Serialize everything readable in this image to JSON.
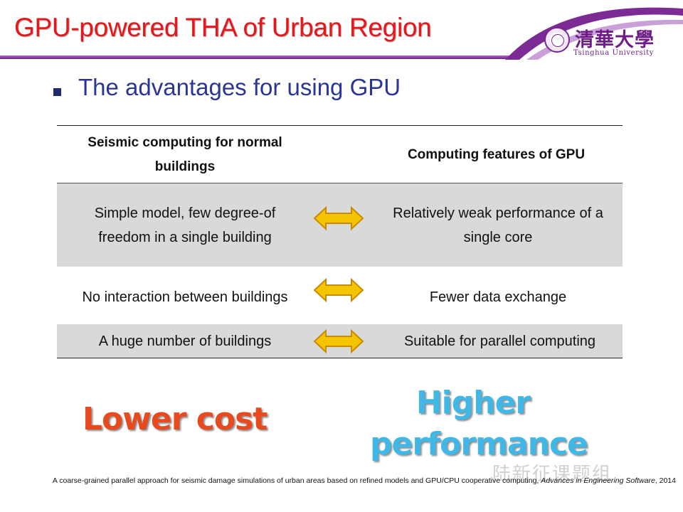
{
  "title": "GPU-powered THA of Urban Region",
  "school": {
    "chinese": "清華大學",
    "english": "Tsinghua University"
  },
  "bullet": "The advantages for using GPU",
  "table": {
    "headers": [
      "Seismic computing for normal buildings",
      "Computing features of GPU"
    ],
    "rows": [
      {
        "left": "Simple model, few degree-of freedom in a single building",
        "right": "Relatively weak performance of a single core",
        "shaded": true
      },
      {
        "left": "No interaction between buildings",
        "right": "Fewer data exchange",
        "shaded": false
      },
      {
        "left": "A huge number of buildings",
        "right": "Suitable for parallel computing",
        "shaded": true
      }
    ]
  },
  "highlights": {
    "left": "Lower cost",
    "right": "Higher performance"
  },
  "reference": {
    "text": "A coarse-grained parallel approach for seismic damage simulations of urban areas based on refined models and GPU/CPU cooperative computing,",
    "journal": "Advances in Engineering Software",
    "year": ", 2014"
  },
  "watermark": "陆新征课题组",
  "colors": {
    "title": "#e8161b",
    "accent_purple": "#6f1d86",
    "bullet": "#2b3596",
    "lower_cost": "#e8491d",
    "higher_perf": "#3fb8e8",
    "arrow": "#f5c400"
  },
  "icons": [
    "double-arrow-icon",
    "university-seal-icon"
  ]
}
